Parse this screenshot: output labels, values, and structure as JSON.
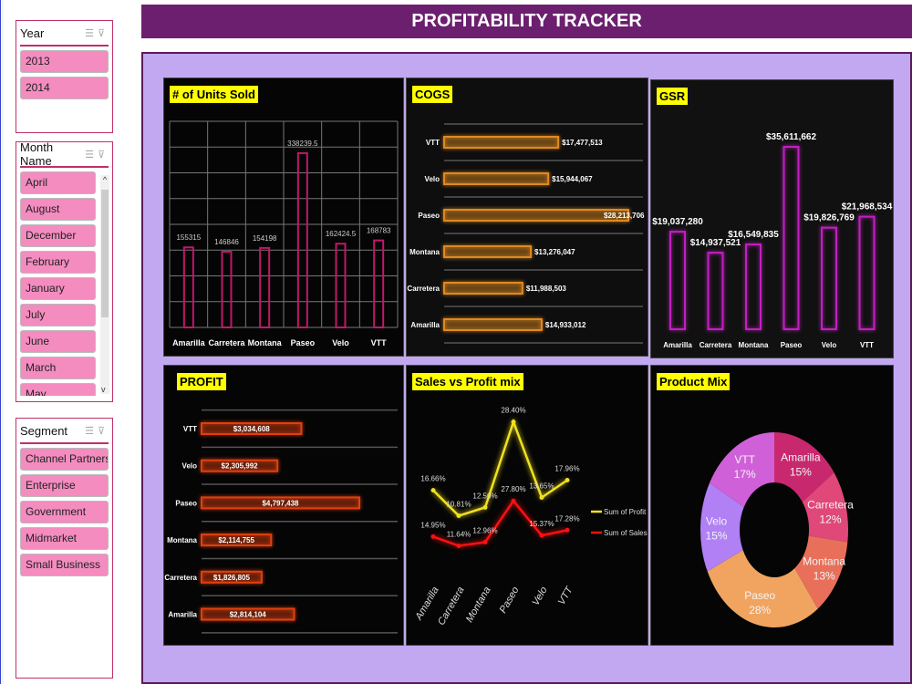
{
  "title": "PROFITABILITY TRACKER",
  "slicers": {
    "year": {
      "label": "Year",
      "items": [
        "2013",
        "2014"
      ]
    },
    "month": {
      "label": "Month Name",
      "items": [
        "April",
        "August",
        "December",
        "February",
        "January",
        "July",
        "June",
        "March",
        "May"
      ]
    },
    "segment": {
      "label": "Segment",
      "items": [
        "Channel Partners",
        "Enterprise",
        "Government",
        "Midmarket",
        "Small Business"
      ]
    }
  },
  "chart_data": [
    {
      "id": "units",
      "type": "bar",
      "title": "# of Units Sold",
      "categories": [
        "Amarilla",
        "Carretera",
        "Montana",
        "Paseo",
        "Velo",
        "VTT"
      ],
      "values": [
        155315,
        146846,
        154198,
        338239.5,
        162424.5,
        168783
      ],
      "value_labels": [
        "155315",
        "146846",
        "154198",
        "338239.5",
        "162424.5",
        "168783"
      ],
      "ylim": [
        0,
        400000
      ],
      "grid": true,
      "color": "#c0186a"
    },
    {
      "id": "cogs",
      "type": "bar",
      "orientation": "horizontal",
      "title": "COGS",
      "categories": [
        "VTT",
        "Velo",
        "Paseo",
        "Montana",
        "Carretera",
        "Amarilla"
      ],
      "values": [
        17477513,
        15944067,
        28213706,
        13276047,
        11988503,
        14933012
      ],
      "value_labels": [
        "$17,477,513",
        "$15,944,067",
        "$28,213,706",
        "$13,276,047",
        "$11,988,503",
        "$14,933,012"
      ],
      "color": "#e08a20"
    },
    {
      "id": "gsr",
      "type": "bar",
      "title": "GSR",
      "categories": [
        "Amarilla",
        "Carretera",
        "Montana",
        "Paseo",
        "Velo",
        "VTT"
      ],
      "values": [
        19037280,
        14937521,
        16549835,
        35611662,
        19826769,
        21968534
      ],
      "value_labels": [
        "$19,037,280",
        "$14,937,521",
        "$16,549,835",
        "$35,611,662",
        "$19,826,769",
        "$21,968,534"
      ],
      "color": "#c020c0"
    },
    {
      "id": "profit",
      "type": "bar",
      "orientation": "horizontal",
      "title": "PROFIT",
      "categories": [
        "VTT",
        "Velo",
        "Paseo",
        "Montana",
        "Carretera",
        "Amarilla"
      ],
      "values": [
        3034608,
        2305992,
        4797438,
        2114755,
        1826805,
        2814104
      ],
      "value_labels": [
        "$3,034,608",
        "$2,305,992",
        "$4,797,438",
        "$2,114,755",
        "$1,826,805",
        "$2,814,104"
      ],
      "color": "#e04010"
    },
    {
      "id": "mix",
      "type": "line",
      "stacked": true,
      "title": "Sales vs Profit mix",
      "categories": [
        "Amarilla",
        "Carretera",
        "Montana",
        "Paseo",
        "Velo",
        "VTT"
      ],
      "series": [
        {
          "name": "Sum of Profit",
          "values": [
            16.66,
            10.81,
            12.5,
            28.4,
            13.65,
            17.96
          ],
          "labels": [
            "16.66%",
            "10.81%",
            "12.50%",
            "28.40%",
            "13.65%",
            "17.96%"
          ],
          "color": "#f0e020"
        },
        {
          "name": "Sum of Sales",
          "values": [
            14.95,
            11.64,
            12.96,
            27.8,
            15.37,
            17.28
          ],
          "labels": [
            "14.95%",
            "11.64%",
            "12.96%",
            "27.80%",
            "15.37%",
            "17.28%"
          ],
          "color": "#ff1010"
        }
      ],
      "legend": "right"
    },
    {
      "id": "product",
      "type": "pie",
      "donut": true,
      "title": "Product Mix",
      "categories": [
        "Amarilla",
        "Carretera",
        "Montana",
        "Paseo",
        "Velo",
        "VTT"
      ],
      "values": [
        15,
        12,
        13,
        28,
        15,
        17
      ],
      "labels": [
        "15%",
        "12%",
        "13%",
        "28%",
        "15%",
        "17%"
      ],
      "colors": [
        "#c8286e",
        "#e0487a",
        "#e8705a",
        "#f0a460",
        "#b080f4",
        "#d060d8"
      ]
    }
  ]
}
